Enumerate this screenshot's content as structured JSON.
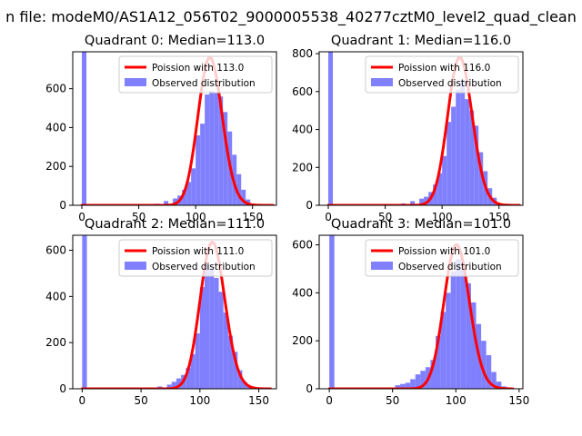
{
  "figure": {
    "suptitle": "n file: modeM0/AS1A12_056T02_9000005538_40277cztM0_level2_quad_clean"
  },
  "colors": {
    "poisson_line": "#ff0000",
    "histogram": "#8080ff",
    "axes": "#000000",
    "background": "#ffffff"
  },
  "chart_data": [
    {
      "type": "bar",
      "title": "Quadrant 0: Median=113.0",
      "xlim": [
        -8,
        171
      ],
      "ylim": [
        0,
        790
      ],
      "xticks": [
        0,
        50,
        100,
        150
      ],
      "yticks": [
        0,
        200,
        400,
        600
      ],
      "legend_position": "top-right",
      "series": [
        {
          "name": "Poission with 113.0",
          "kind": "line",
          "mean": 113.0,
          "peak": 760,
          "x_range": [
            0,
            168
          ]
        },
        {
          "name": "Observed distribution",
          "kind": "histogram",
          "bin_width": 4,
          "bins": [
            {
              "x": 0,
              "y": 790
            },
            {
              "x": 64,
              "y": 8
            },
            {
              "x": 72,
              "y": 22
            },
            {
              "x": 80,
              "y": 35
            },
            {
              "x": 84,
              "y": 50
            },
            {
              "x": 88,
              "y": 80
            },
            {
              "x": 92,
              "y": 120
            },
            {
              "x": 96,
              "y": 190
            },
            {
              "x": 100,
              "y": 360
            },
            {
              "x": 104,
              "y": 420
            },
            {
              "x": 108,
              "y": 570
            },
            {
              "x": 112,
              "y": 590
            },
            {
              "x": 116,
              "y": 580
            },
            {
              "x": 120,
              "y": 560
            },
            {
              "x": 124,
              "y": 480
            },
            {
              "x": 128,
              "y": 380
            },
            {
              "x": 132,
              "y": 260
            },
            {
              "x": 136,
              "y": 160
            },
            {
              "x": 140,
              "y": 80
            },
            {
              "x": 144,
              "y": 30
            }
          ]
        }
      ]
    },
    {
      "type": "bar",
      "title": "Quadrant 1: Median=116.0",
      "xlim": [
        -8,
        171
      ],
      "ylim": [
        0,
        810
      ],
      "xticks": [
        0,
        50,
        100,
        150
      ],
      "yticks": [
        0,
        200,
        400,
        600,
        800
      ],
      "legend_position": "top-right",
      "series": [
        {
          "name": "Poission with 116.0",
          "kind": "line",
          "mean": 116.0,
          "peak": 780,
          "x_range": [
            0,
            168
          ]
        },
        {
          "name": "Observed distribution",
          "kind": "histogram",
          "bin_width": 4,
          "bins": [
            {
              "x": 0,
              "y": 810
            },
            {
              "x": 64,
              "y": 10
            },
            {
              "x": 72,
              "y": 22
            },
            {
              "x": 80,
              "y": 35
            },
            {
              "x": 84,
              "y": 45
            },
            {
              "x": 88,
              "y": 70
            },
            {
              "x": 92,
              "y": 110
            },
            {
              "x": 96,
              "y": 170
            },
            {
              "x": 100,
              "y": 260
            },
            {
              "x": 104,
              "y": 440
            },
            {
              "x": 108,
              "y": 520
            },
            {
              "x": 112,
              "y": 610
            },
            {
              "x": 116,
              "y": 660
            },
            {
              "x": 120,
              "y": 560
            },
            {
              "x": 124,
              "y": 500
            },
            {
              "x": 128,
              "y": 420
            },
            {
              "x": 132,
              "y": 280
            },
            {
              "x": 136,
              "y": 180
            },
            {
              "x": 140,
              "y": 90
            },
            {
              "x": 144,
              "y": 40
            }
          ]
        }
      ]
    },
    {
      "type": "bar",
      "title": "Quadrant 2: Median=111.0",
      "xlim": [
        -8,
        165
      ],
      "ylim": [
        0,
        665
      ],
      "xticks": [
        0,
        50,
        100,
        150
      ],
      "yticks": [
        0,
        200,
        400,
        600
      ],
      "legend_position": "top-right",
      "series": [
        {
          "name": "Poission with 111.0",
          "kind": "line",
          "mean": 111.0,
          "peak": 635,
          "x_range": [
            0,
            160
          ]
        },
        {
          "name": "Observed distribution",
          "kind": "histogram",
          "bin_width": 4,
          "bins": [
            {
              "x": 0,
              "y": 665
            },
            {
              "x": 64,
              "y": 10
            },
            {
              "x": 72,
              "y": 18
            },
            {
              "x": 76,
              "y": 30
            },
            {
              "x": 80,
              "y": 45
            },
            {
              "x": 84,
              "y": 60
            },
            {
              "x": 88,
              "y": 90
            },
            {
              "x": 92,
              "y": 150
            },
            {
              "x": 96,
              "y": 240
            },
            {
              "x": 100,
              "y": 440
            },
            {
              "x": 104,
              "y": 540
            },
            {
              "x": 108,
              "y": 520
            },
            {
              "x": 112,
              "y": 480
            },
            {
              "x": 116,
              "y": 420
            },
            {
              "x": 120,
              "y": 330
            },
            {
              "x": 124,
              "y": 230
            },
            {
              "x": 128,
              "y": 160
            },
            {
              "x": 132,
              "y": 80
            },
            {
              "x": 136,
              "y": 30
            },
            {
              "x": 140,
              "y": 10
            }
          ]
        }
      ]
    },
    {
      "type": "bar",
      "title": "Quadrant 3: Median=101.0",
      "xlim": [
        -8,
        153
      ],
      "ylim": [
        0,
        640
      ],
      "xticks": [
        0,
        50,
        100,
        150
      ],
      "yticks": [
        0,
        200,
        400,
        600
      ],
      "legend_position": "top-right",
      "series": [
        {
          "name": "Poission with 101.0",
          "kind": "line",
          "mean": 101.0,
          "peak": 600,
          "x_range": [
            0,
            145
          ]
        },
        {
          "name": "Observed distribution",
          "kind": "histogram",
          "bin_width": 4,
          "bins": [
            {
              "x": 0,
              "y": 640
            },
            {
              "x": 52,
              "y": 15
            },
            {
              "x": 56,
              "y": 20
            },
            {
              "x": 60,
              "y": 25
            },
            {
              "x": 64,
              "y": 40
            },
            {
              "x": 68,
              "y": 60
            },
            {
              "x": 72,
              "y": 75
            },
            {
              "x": 76,
              "y": 90
            },
            {
              "x": 80,
              "y": 120
            },
            {
              "x": 84,
              "y": 220
            },
            {
              "x": 88,
              "y": 320
            },
            {
              "x": 92,
              "y": 400
            },
            {
              "x": 96,
              "y": 490
            },
            {
              "x": 100,
              "y": 540
            },
            {
              "x": 104,
              "y": 500
            },
            {
              "x": 108,
              "y": 440
            },
            {
              "x": 112,
              "y": 360
            },
            {
              "x": 116,
              "y": 270
            },
            {
              "x": 120,
              "y": 200
            },
            {
              "x": 124,
              "y": 140
            },
            {
              "x": 128,
              "y": 70
            },
            {
              "x": 132,
              "y": 30
            },
            {
              "x": 136,
              "y": 10
            }
          ]
        }
      ]
    }
  ]
}
